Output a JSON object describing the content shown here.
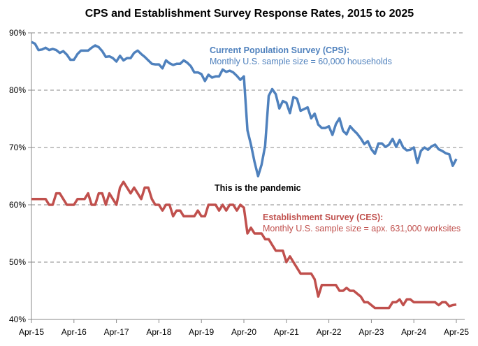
{
  "chart_data": {
    "type": "line",
    "title": "CPS and Establishment Survey Response Rates, 2015 to 2025",
    "xlabel": "",
    "ylabel": "",
    "ylim": [
      40,
      90
    ],
    "y_ticks": [
      "40%",
      "50%",
      "60%",
      "70%",
      "80%",
      "90%"
    ],
    "y_tick_values": [
      40,
      50,
      60,
      70,
      80,
      90
    ],
    "x_ticks": [
      "Apr-15",
      "Apr-16",
      "Apr-17",
      "Apr-18",
      "Apr-19",
      "Apr-20",
      "Apr-21",
      "Apr-22",
      "Apr-23",
      "Apr-24",
      "Apr-25"
    ],
    "x_range_months": [
      0,
      120
    ],
    "grid": "horizontal dashed",
    "series": [
      {
        "name": "Current Population Survey (CPS)",
        "color": "#4F81BD",
        "values": [
          88.4,
          88.1,
          87.0,
          87.1,
          87.4,
          87.0,
          87.2,
          87.0,
          86.5,
          86.8,
          86.2,
          85.3,
          85.3,
          86.3,
          86.9,
          86.9,
          86.9,
          87.4,
          87.8,
          87.5,
          86.8,
          85.8,
          85.9,
          85.6,
          85.0,
          86.0,
          85.2,
          85.6,
          85.6,
          86.5,
          86.9,
          86.3,
          85.8,
          85.2,
          84.6,
          84.5,
          84.5,
          83.8,
          85.2,
          84.7,
          84.4,
          84.6,
          84.6,
          85.2,
          84.8,
          84.2,
          83.1,
          83.1,
          82.8,
          81.6,
          82.7,
          82.2,
          82.4,
          82.4,
          83.6,
          83.2,
          83.4,
          83.1,
          82.5,
          81.8,
          82.4,
          73.0,
          70.5,
          67.5,
          65.0,
          67.0,
          70.3,
          79.0,
          80.2,
          79.3,
          76.8,
          78.1,
          77.8,
          76.0,
          78.8,
          78.5,
          76.4,
          76.7,
          77.0,
          75.1,
          75.9,
          74.0,
          73.4,
          73.4,
          73.7,
          72.2,
          74.1,
          75.1,
          72.9,
          72.3,
          73.7,
          73.0,
          72.4,
          71.6,
          70.6,
          71.1,
          69.7,
          68.9,
          70.7,
          70.7,
          70.1,
          70.5,
          71.5,
          70.1,
          71.3,
          70.0,
          69.5,
          69.6,
          70.0,
          67.3,
          69.4,
          70.0,
          69.6,
          70.2,
          70.5,
          69.7,
          69.4,
          69.0,
          68.8,
          66.8,
          68.0
        ]
      },
      {
        "name": "Establishment Survey (CES)",
        "color": "#C0504D",
        "values": [
          61,
          61,
          61,
          61,
          61,
          60,
          60,
          62,
          62,
          61,
          60,
          60,
          60,
          61,
          61,
          61,
          62,
          60,
          60,
          62,
          62,
          60,
          62,
          61,
          60,
          63,
          64,
          63,
          62,
          63,
          62,
          61,
          63,
          63,
          61,
          60,
          60,
          59,
          60,
          60,
          58,
          59,
          59,
          58,
          58,
          58,
          58,
          59,
          58,
          58,
          60,
          60,
          60,
          59,
          60,
          59,
          60,
          60,
          59,
          60,
          59.5,
          55,
          56,
          55,
          55,
          55,
          54,
          54,
          53,
          52,
          52,
          52,
          50,
          51,
          50,
          49,
          48,
          48,
          48,
          48,
          47,
          44,
          46,
          46,
          46,
          46,
          46,
          45,
          45,
          45.5,
          45,
          45,
          44.5,
          44,
          43,
          43,
          42.5,
          42,
          42,
          42,
          42,
          42,
          43,
          43,
          43.5,
          42.5,
          43.5,
          43.5,
          43,
          43,
          43,
          43,
          43,
          43,
          43,
          42.5,
          43,
          43,
          42.3,
          42.5,
          42.6
        ]
      }
    ],
    "annotations": {
      "cps_title": "Current Population Survey (CPS):",
      "cps_sub": "Monthly U.S. sample size = 60,000 households",
      "ces_title": "Establishment Survey (CES):",
      "ces_sub": "Monthly U.S. sample size = apx. 631,000 worksites",
      "pandemic": "This is the pandemic"
    }
  }
}
